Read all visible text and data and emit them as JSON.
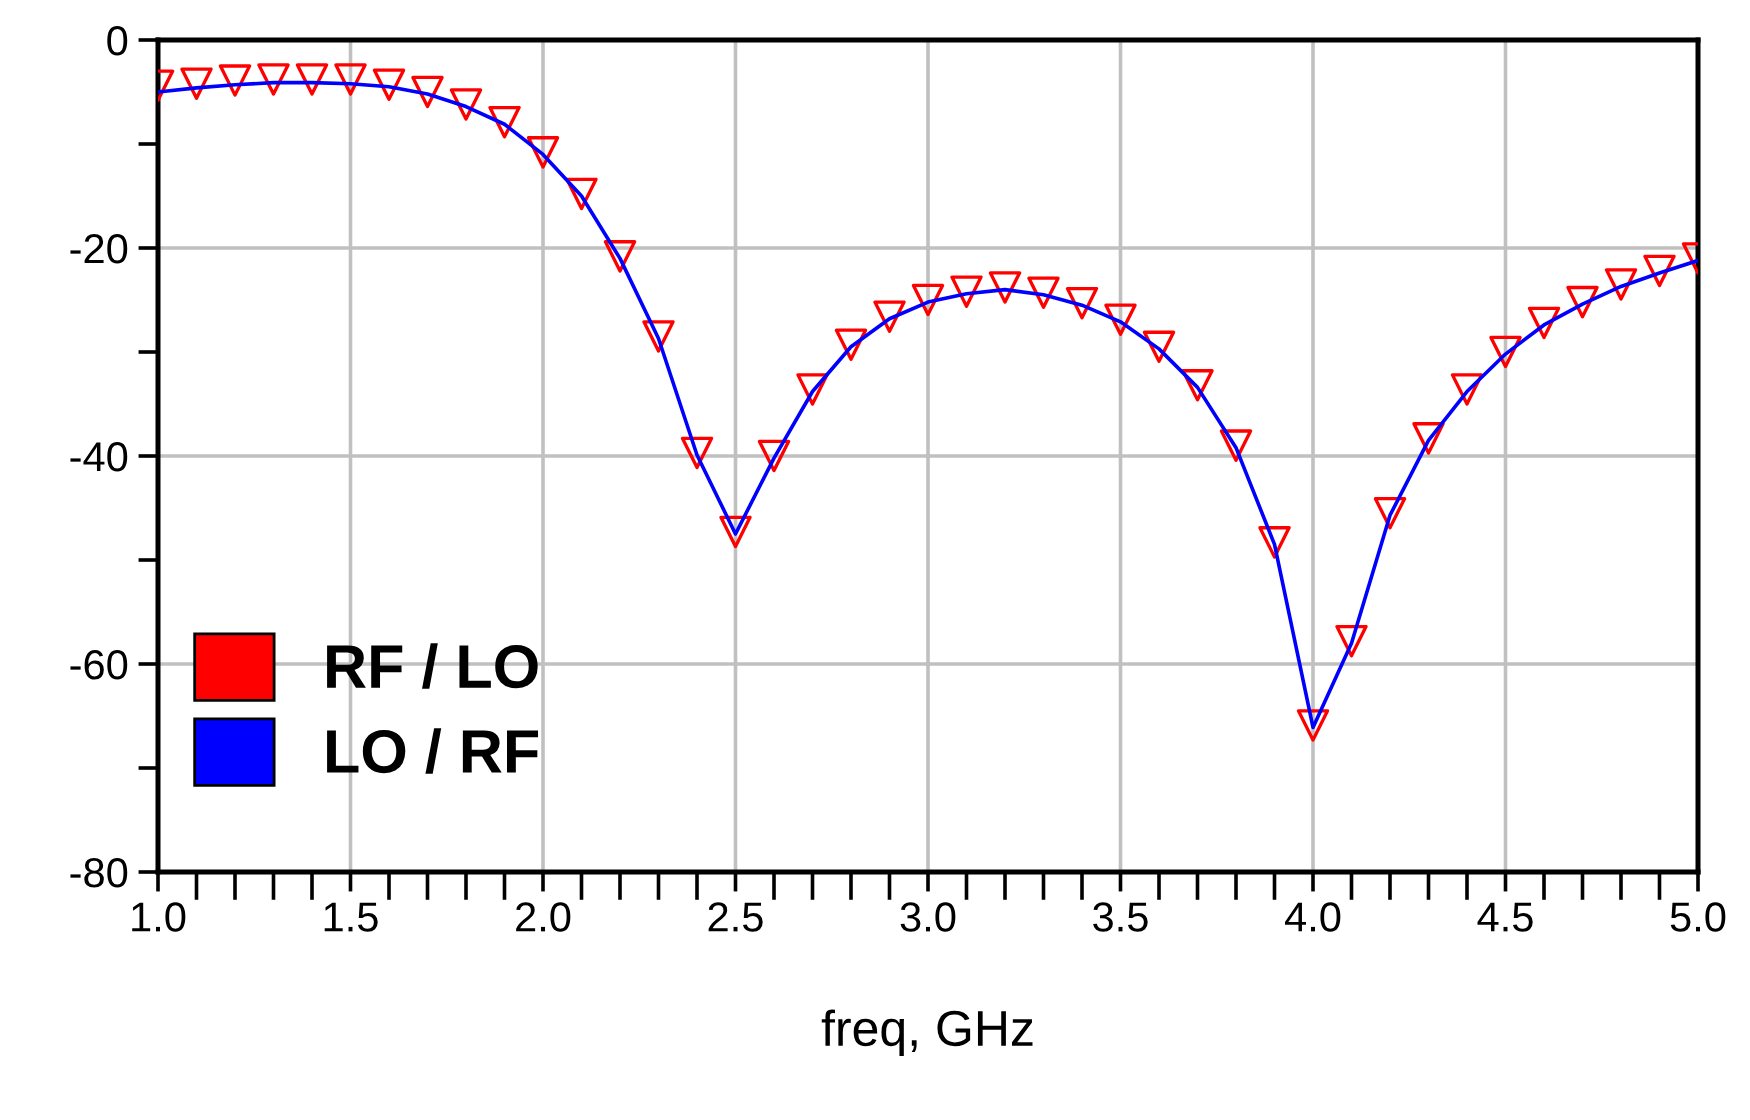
{
  "chart_data": {
    "type": "line",
    "xlabel": "freq, GHz",
    "x": [
      1.0,
      1.1,
      1.2,
      1.3,
      1.4,
      1.5,
      1.6,
      1.7,
      1.8,
      1.9,
      2.0,
      2.1,
      2.2,
      2.3,
      2.4,
      2.5,
      2.6,
      2.7,
      2.8,
      2.9,
      3.0,
      3.1,
      3.2,
      3.3,
      3.4,
      3.5,
      3.6,
      3.7,
      3.8,
      3.9,
      4.0,
      4.1,
      4.2,
      4.3,
      4.4,
      4.5,
      4.6,
      4.7,
      4.8,
      4.9,
      5.0
    ],
    "series": [
      {
        "name": "RF / LO",
        "color": "#ff0000",
        "type": "scatter",
        "marker": "triangle",
        "values": [
          -4.4,
          -4.2,
          -3.9,
          -3.8,
          -3.8,
          -3.8,
          -4.3,
          -5.0,
          -6.2,
          -7.9,
          -10.8,
          -14.8,
          -20.8,
          -28.5,
          -39.7,
          -47.3,
          -40.0,
          -33.6,
          -29.3,
          -26.6,
          -25.0,
          -24.2,
          -23.8,
          -24.3,
          -25.3,
          -26.9,
          -29.5,
          -33.2,
          -39.0,
          -48.3,
          -65.9,
          -57.8,
          -45.5,
          -38.3,
          -33.6,
          -30.0,
          -27.2,
          -25.2,
          -23.5,
          -22.2,
          -21.0
        ]
      },
      {
        "name": "LO / RF",
        "color": "#0000ff",
        "values": [
          -5.0,
          -4.6,
          -4.3,
          -4.1,
          -4.1,
          -4.2,
          -4.5,
          -5.2,
          -6.4,
          -8.1,
          -11.0,
          -15.0,
          -21.0,
          -28.7,
          -39.9,
          -47.5,
          -40.2,
          -33.8,
          -29.5,
          -26.8,
          -25.2,
          -24.4,
          -24.0,
          -24.5,
          -25.5,
          -27.1,
          -29.7,
          -33.4,
          -39.2,
          -48.5,
          -66.1,
          -58.0,
          -45.7,
          -38.5,
          -33.8,
          -30.2,
          -27.4,
          -25.4,
          -23.7,
          -22.4,
          -21.2
        ]
      }
    ],
    "xlim": [
      1.0,
      5.0
    ],
    "xticks": [
      {
        "value": 1.0,
        "label": "1.0"
      },
      {
        "value": 1.1,
        "label": null
      },
      {
        "value": 1.2,
        "label": null
      },
      {
        "value": 1.3,
        "label": null
      },
      {
        "value": 1.4,
        "label": null
      },
      {
        "value": 1.5,
        "label": "1.5"
      },
      {
        "value": 1.6,
        "label": null
      },
      {
        "value": 1.7,
        "label": null
      },
      {
        "value": 1.8,
        "label": null
      },
      {
        "value": 1.9,
        "label": null
      },
      {
        "value": 2.0,
        "label": "2.0"
      },
      {
        "value": 2.1,
        "label": null
      },
      {
        "value": 2.2,
        "label": null
      },
      {
        "value": 2.3,
        "label": null
      },
      {
        "value": 2.4,
        "label": null
      },
      {
        "value": 2.5,
        "label": "2.5"
      },
      {
        "value": 2.6,
        "label": null
      },
      {
        "value": 2.7,
        "label": null
      },
      {
        "value": 2.8,
        "label": null
      },
      {
        "value": 2.9,
        "label": null
      },
      {
        "value": 3.0,
        "label": "3.0"
      },
      {
        "value": 3.1,
        "label": null
      },
      {
        "value": 3.2,
        "label": null
      },
      {
        "value": 3.3,
        "label": null
      },
      {
        "value": 3.4,
        "label": null
      },
      {
        "value": 3.5,
        "label": "3.5"
      },
      {
        "value": 3.6,
        "label": null
      },
      {
        "value": 3.7,
        "label": null
      },
      {
        "value": 3.8,
        "label": null
      },
      {
        "value": 3.9,
        "label": null
      },
      {
        "value": 4.0,
        "label": "4.0"
      },
      {
        "value": 4.1,
        "label": null
      },
      {
        "value": 4.2,
        "label": null
      },
      {
        "value": 4.3,
        "label": null
      },
      {
        "value": 4.4,
        "label": null
      },
      {
        "value": 4.5,
        "label": "4.5"
      },
      {
        "value": 4.6,
        "label": null
      },
      {
        "value": 4.7,
        "label": null
      },
      {
        "value": 4.8,
        "label": null
      },
      {
        "value": 4.9,
        "label": null
      },
      {
        "value": 5.0,
        "label": "5.0"
      }
    ],
    "ylim": [
      -80,
      0
    ],
    "yticks": [
      -80,
      {
        "value": -70,
        "label": null
      },
      -60,
      {
        "value": -50,
        "label": null
      },
      -40,
      {
        "value": -30,
        "label": null
      },
      -20,
      {
        "value": -10,
        "label": null
      },
      0
    ],
    "grid": true,
    "legend": "bottom left"
  }
}
